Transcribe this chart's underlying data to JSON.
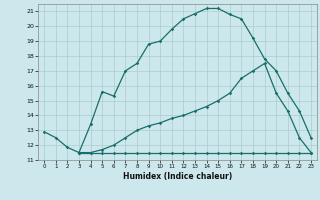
{
  "title": "",
  "xlabel": "Humidex (Indice chaleur)",
  "bg_color": "#cce8ec",
  "grid_color": "#aacccc",
  "line_color": "#1a6e6a",
  "xlim": [
    -0.5,
    23.5
  ],
  "ylim": [
    11.0,
    21.5
  ],
  "xticks": [
    0,
    1,
    2,
    3,
    4,
    5,
    6,
    7,
    8,
    9,
    10,
    11,
    12,
    13,
    14,
    15,
    16,
    17,
    18,
    19,
    20,
    21,
    22,
    23
  ],
  "yticks": [
    11,
    12,
    13,
    14,
    15,
    16,
    17,
    18,
    19,
    20,
    21
  ],
  "curve1_x": [
    0,
    1,
    2,
    3,
    4,
    5,
    6,
    7,
    8,
    9,
    10,
    11,
    12,
    13,
    14,
    15,
    16,
    17,
    18,
    19,
    20,
    21,
    22,
    23
  ],
  "curve1_y": [
    12.9,
    12.5,
    11.85,
    11.5,
    13.4,
    15.6,
    15.3,
    17.0,
    17.5,
    18.8,
    19.0,
    19.8,
    20.5,
    20.85,
    21.2,
    21.2,
    20.8,
    20.5,
    19.2,
    17.8,
    17.0,
    15.5,
    14.3,
    12.5
  ],
  "curve2_x": [
    3,
    4,
    5,
    6,
    7,
    8,
    9,
    10,
    11,
    12,
    13,
    14,
    15,
    16,
    17,
    18,
    19,
    20,
    21,
    22,
    23
  ],
  "curve2_y": [
    11.5,
    11.5,
    11.7,
    12.0,
    12.5,
    13.0,
    13.3,
    13.5,
    13.8,
    14.0,
    14.3,
    14.6,
    15.0,
    15.5,
    16.5,
    17.0,
    17.5,
    15.5,
    14.3,
    12.5,
    11.5
  ],
  "curve3_x": [
    3,
    4,
    5,
    6,
    7,
    8,
    9,
    10,
    11,
    12,
    13,
    14,
    15,
    16,
    17,
    18,
    19,
    20,
    21,
    22,
    23
  ],
  "curve3_y": [
    11.5,
    11.5,
    11.5,
    11.5,
    11.5,
    11.5,
    11.5,
    11.5,
    11.5,
    11.5,
    11.5,
    11.5,
    11.5,
    11.5,
    11.5,
    11.5,
    11.5,
    11.5,
    11.5,
    11.5,
    11.5
  ]
}
